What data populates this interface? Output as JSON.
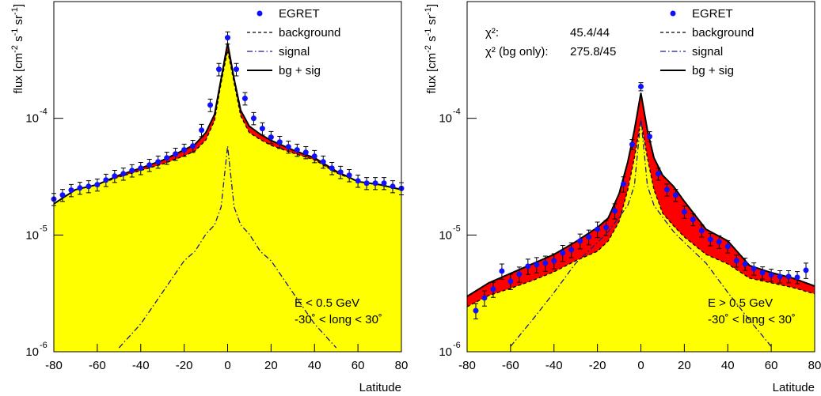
{
  "chart_data": [
    {
      "type": "line",
      "log_y": true,
      "grid": false,
      "legend_position": "upper right",
      "x_label": "Latitude",
      "y_label_parts": [
        "flux [cm",
        "-2",
        " s",
        "-1",
        " sr",
        "-1",
        "]"
      ],
      "xlim": [
        -80,
        80
      ],
      "xticks": [
        -80,
        -60,
        -40,
        -20,
        0,
        20,
        40,
        60,
        80
      ],
      "ylim": [
        1e-06,
        0.001
      ],
      "yticks": [
        {
          "value": 1e-06,
          "label": "10",
          "exponent": "-6"
        },
        {
          "value": 1e-05,
          "label": "10",
          "exponent": "-5"
        },
        {
          "value": 0.0001,
          "label": "10",
          "exponent": "-4"
        }
      ],
      "x": [
        -80,
        -70,
        -60,
        -50,
        -40,
        -30,
        -20,
        -15,
        -10,
        -6,
        -3,
        0,
        3,
        6,
        10,
        15,
        20,
        30,
        40,
        50,
        60,
        70,
        80
      ],
      "series": [
        {
          "name": "EGRET",
          "color": "#1010ff",
          "style": "points",
          "x": [
            -80,
            -76,
            -72,
            -68,
            -64,
            -60,
            -56,
            -52,
            -48,
            -44,
            -40,
            -36,
            -32,
            -28,
            -24,
            -20,
            -16,
            -12,
            -8,
            -4,
            0,
            4,
            8,
            12,
            16,
            20,
            24,
            28,
            32,
            36,
            40,
            44,
            48,
            52,
            56,
            60,
            64,
            68,
            72,
            76,
            80
          ],
          "values": [
            2.03e-05,
            2.2e-05,
            2.42e-05,
            2.53e-05,
            2.61e-05,
            2.7e-05,
            2.96e-05,
            3.2e-05,
            3.35e-05,
            3.57e-05,
            3.74e-05,
            3.98e-05,
            4.24e-05,
            4.58e-05,
            4.95e-05,
            5.36e-05,
            5.79e-05,
            7.91e-05,
            0.00013,
            0.000263,
            0.000491,
            0.000263,
            0.000148,
            0.0001,
            8.17e-05,
            6.88e-05,
            6.26e-05,
            5.7e-05,
            5.36e-05,
            5.11e-05,
            4.73e-05,
            4.24e-05,
            3.74e-05,
            3.46e-05,
            3.25e-05,
            2.91e-05,
            2.78e-05,
            2.78e-05,
            2.78e-05,
            2.61e-05,
            2.51e-05
          ],
          "errors": [
            2.4e-06,
            2.6e-06,
            2.9e-06,
            3e-06,
            3.1e-06,
            3.2e-06,
            3.6e-06,
            3.8e-06,
            4e-06,
            4.3e-06,
            4.5e-06,
            4.8e-06,
            5.1e-06,
            5.5e-06,
            5.9e-06,
            6.4e-06,
            6.9e-06,
            9.5e-06,
            1.6e-05,
            3.2e-05,
            5.9e-05,
            3.2e-05,
            1.8e-05,
            1.2e-05,
            9.8e-06,
            8.3e-06,
            7.5e-06,
            6.8e-06,
            6.4e-06,
            6.1e-06,
            5.7e-06,
            5.1e-06,
            4.5e-06,
            4.2e-06,
            3.9e-06,
            3.5e-06,
            3.3e-06,
            3.3e-06,
            3.3e-06,
            3.1e-06,
            3e-06
          ]
        },
        {
          "name": "background",
          "color": "#000000",
          "style": "dashed",
          "fill": "#ffff00",
          "values": [
            1.85e-05,
            2.45e-05,
            2.7e-05,
            3.14e-05,
            3.57e-05,
            4.05e-05,
            4.76e-05,
            5.24e-05,
            6.53e-05,
            9.58e-05,
            0.000201,
            0.000383,
            0.000201,
            0.000105,
            7.53e-05,
            6.58e-05,
            5.86e-05,
            5.04e-05,
            4.41e-05,
            3.41e-05,
            2.87e-05,
            2.7e-05,
            2.45e-05
          ]
        },
        {
          "name": "signal",
          "color": "#1a1a8c",
          "style": "dashdot",
          "values": [
            null,
            null,
            null,
            1.08e-06,
            1.73e-06,
            3.22e-06,
            6.02e-06,
            7.26e-06,
            1.02e-05,
            1.22e-05,
            1.74e-05,
            5.79e-05,
            1.74e-05,
            1.22e-05,
            1.02e-05,
            7.26e-06,
            6.02e-06,
            3.22e-06,
            1.73e-06,
            1.08e-06,
            null,
            null,
            null
          ]
        },
        {
          "name": "bg + sig",
          "color": "#000000",
          "style": "solid",
          "fill": "#ff0000",
          "values": [
            1.85e-05,
            2.45e-05,
            2.7e-05,
            3.25e-05,
            3.74e-05,
            4.37e-05,
            5.36e-05,
            5.97e-05,
            7.55e-05,
            0.000108,
            0.000218,
            0.000441,
            0.000218,
            0.000117,
            8.55e-05,
            7.31e-05,
            6.46e-05,
            5.36e-05,
            4.58e-05,
            3.52e-05,
            2.87e-05,
            2.7e-05,
            2.45e-05
          ]
        }
      ],
      "annotations": [
        "E < 0.5 GeV",
        "-30˚ < long < 30˚"
      ]
    },
    {
      "type": "line",
      "log_y": true,
      "grid": false,
      "legend_position": "upper right",
      "x_label": "Latitude",
      "y_label_parts": [
        "flux [cm",
        "-2",
        " s",
        "-1",
        " sr",
        "-1",
        "]"
      ],
      "xlim": [
        -80,
        80
      ],
      "xticks": [
        -80,
        -60,
        -40,
        -20,
        0,
        20,
        40,
        60,
        80
      ],
      "ylim": [
        1e-06,
        0.001
      ],
      "yticks": [
        {
          "value": 1e-06,
          "label": "10",
          "exponent": "-6"
        },
        {
          "value": 1e-05,
          "label": "10",
          "exponent": "-5"
        },
        {
          "value": 0.0001,
          "label": "10",
          "exponent": "-4"
        }
      ],
      "x": [
        -80,
        -70,
        -60,
        -50,
        -40,
        -30,
        -20,
        -15,
        -10,
        -6,
        -3,
        0,
        3,
        6,
        10,
        15,
        20,
        30,
        40,
        50,
        60,
        70,
        80
      ],
      "series": [
        {
          "name": "EGRET",
          "color": "#1010ff",
          "style": "points",
          "x": [
            -76,
            -72,
            -68,
            -64,
            -60,
            -56,
            -52,
            -48,
            -44,
            -40,
            -36,
            -32,
            -28,
            -24,
            -20,
            -16,
            -12,
            -8,
            -4,
            0,
            4,
            8,
            12,
            16,
            20,
            24,
            28,
            32,
            36,
            40,
            44,
            48,
            52,
            56,
            60,
            64,
            68,
            72,
            76
          ],
          "values": [
            2.25e-06,
            2.89e-06,
            3.43e-06,
            4.91e-06,
            4.01e-06,
            4.62e-06,
            5.4e-06,
            5.57e-06,
            5.74e-06,
            6.02e-06,
            7.04e-06,
            7.49e-06,
            8.9e-06,
            9.62e-06,
            1.12e-05,
            1.16e-05,
            1.61e-05,
            2.74e-05,
            5.97e-05,
            0.000187,
            6.98e-05,
            3.35e-05,
            2.45e-05,
            2.2e-05,
            1.58e-05,
            1.36e-05,
            1.09e-05,
            9.18e-06,
            8.76e-06,
            7.97e-06,
            6.02e-06,
            5.65e-06,
            5.15e-06,
            4.76e-06,
            4.55e-06,
            4.41e-06,
            4.41e-06,
            4.34e-06,
            4.99e-06
          ],
          "errors": [
            3.4e-07,
            4.3e-07,
            5.1e-07,
            7.4e-07,
            6e-07,
            6.9e-07,
            8.1e-07,
            8.4e-07,
            8.6e-07,
            9e-07,
            1.1e-06,
            1.1e-06,
            1.3e-06,
            1.4e-06,
            1.7e-06,
            1.7e-06,
            2.4e-06,
            4.1e-06,
            6e-06,
            1.5e-05,
            7e-06,
            4e-06,
            2.9e-06,
            2.6e-06,
            1.9e-06,
            1.6e-06,
            1.3e-06,
            1.1e-06,
            1.1e-06,
            9.6e-07,
            7.2e-07,
            6.8e-07,
            6.2e-07,
            5.7e-07,
            5.5e-07,
            5.3e-07,
            5.3e-07,
            5.2e-07,
            7.5e-07
          ]
        },
        {
          "name": "background",
          "color": "#000000",
          "style": "dashed",
          "fill": "#ffff00",
          "values": [
            2.43e-06,
            3.03e-06,
            3.49e-06,
            4.07e-06,
            4.84e-06,
            6.02e-06,
            7.26e-06,
            8.9e-06,
            1.31e-05,
            2.45e-05,
            4.58e-05,
            9.55e-05,
            4.58e-05,
            2.45e-05,
            1.54e-05,
            1.2e-05,
            9.62e-06,
            6.82e-06,
            5.65e-06,
            4.27e-06,
            3.89e-06,
            3.54e-06,
            3.13e-06
          ]
        },
        {
          "name": "signal",
          "color": "#1a1a8c",
          "style": "dashdot",
          "values": [
            null,
            null,
            1.11e-06,
            1.87e-06,
            3.22e-06,
            5.74e-06,
            8.63e-06,
            1.07e-05,
            1.42e-05,
            1.8e-05,
            2.65e-05,
            0.0001,
            2.65e-05,
            1.8e-05,
            1.42e-05,
            1.07e-05,
            8.63e-06,
            5.74e-06,
            3.22e-06,
            1.87e-06,
            1.11e-06,
            null,
            null
          ]
        },
        {
          "name": "bg + sig",
          "color": "#000000",
          "style": "solid",
          "fill": "#ff0000",
          "values": [
            2.98e-06,
            3.89e-06,
            4.69e-06,
            5.65e-06,
            6.82e-06,
            8.76e-06,
            1.16e-05,
            1.4e-05,
            2.27e-05,
            4.24e-05,
            7.91e-05,
            0.000165,
            7.91e-05,
            4.58e-05,
            3.25e-05,
            2.61e-05,
            1.94e-05,
            1.12e-05,
            8.9e-06,
            5.48e-06,
            4.76e-06,
            4.27e-06,
            3.65e-06
          ]
        }
      ],
      "stats": [
        [
          "χ²:",
          "45.4/44"
        ],
        [
          "χ² (bg only):",
          "275.8/45"
        ]
      ],
      "annotations": [
        "E > 0.5 GeV",
        "-30˚ < long < 30˚"
      ]
    }
  ]
}
